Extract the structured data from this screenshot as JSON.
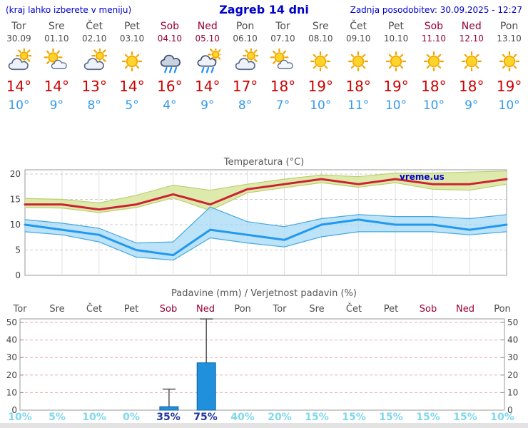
{
  "header": {
    "note": "(kraj lahko izberete v meniju)",
    "title": "Zagreb 14 dni",
    "updated": "Zadnja posodobitev: 30.09.2025 - 12:27"
  },
  "forecast": {
    "days": [
      {
        "name": "Tor",
        "date": "30.09",
        "weekend": false,
        "icon": "cloud-sun",
        "tmax": "14°",
        "tmin": "10°"
      },
      {
        "name": "Sre",
        "date": "01.10",
        "weekend": false,
        "icon": "sun-cloud",
        "tmax": "14°",
        "tmin": "9°"
      },
      {
        "name": "Čet",
        "date": "02.10",
        "weekend": false,
        "icon": "cloud-sun",
        "tmax": "13°",
        "tmin": "8°"
      },
      {
        "name": "Pet",
        "date": "03.10",
        "weekend": false,
        "icon": "sun",
        "tmax": "14°",
        "tmin": "5°"
      },
      {
        "name": "Sob",
        "date": "04.10",
        "weekend": true,
        "icon": "rain",
        "tmax": "16°",
        "tmin": "4°"
      },
      {
        "name": "Ned",
        "date": "05.10",
        "weekend": true,
        "icon": "sun-rain",
        "tmax": "14°",
        "tmin": "9°"
      },
      {
        "name": "Pon",
        "date": "06.10",
        "weekend": false,
        "icon": "cloud-sun",
        "tmax": "17°",
        "tmin": "8°"
      },
      {
        "name": "Tor",
        "date": "07.10",
        "weekend": false,
        "icon": "sun-cloud",
        "tmax": "18°",
        "tmin": "7°"
      },
      {
        "name": "Sre",
        "date": "08.10",
        "weekend": false,
        "icon": "sun",
        "tmax": "19°",
        "tmin": "10°"
      },
      {
        "name": "Čet",
        "date": "09.10",
        "weekend": false,
        "icon": "sun",
        "tmax": "18°",
        "tmin": "11°"
      },
      {
        "name": "Pet",
        "date": "10.10",
        "weekend": false,
        "icon": "sun",
        "tmax": "19°",
        "tmin": "10°"
      },
      {
        "name": "Sob",
        "date": "11.10",
        "weekend": true,
        "icon": "sun",
        "tmax": "18°",
        "tmin": "10°"
      },
      {
        "name": "Ned",
        "date": "12.10",
        "weekend": true,
        "icon": "sun",
        "tmax": "18°",
        "tmin": "9°"
      },
      {
        "name": "Pon",
        "date": "13.10",
        "weekend": false,
        "icon": "sun",
        "tmax": "19°",
        "tmin": "10°"
      }
    ]
  },
  "chart_data": [
    {
      "type": "line",
      "title": "Temperatura (°C)",
      "watermark": "vreme.us",
      "categories": [
        "Tor",
        "Sre",
        "Čet",
        "Pet",
        "Sob",
        "Ned",
        "Pon",
        "Tor",
        "Sre",
        "Čet",
        "Pet",
        "Sob",
        "Ned",
        "Pon"
      ],
      "ylim": [
        0,
        21
      ],
      "yticks": [
        0,
        5,
        10,
        15,
        20
      ],
      "grid": true,
      "legend": "none",
      "series": [
        {
          "name": "tmax",
          "color": "#cc2233",
          "values": [
            14,
            14,
            13,
            14,
            16,
            14,
            17,
            18,
            19,
            18,
            19,
            18,
            18,
            19
          ]
        },
        {
          "name": "tmin",
          "color": "#2299ee",
          "values": [
            10,
            9,
            8,
            5,
            4,
            9,
            8,
            7,
            10,
            11,
            10,
            10,
            9,
            10
          ]
        },
        {
          "name": "tmax_band_high",
          "values": [
            15.2,
            15,
            14.3,
            15.8,
            17.8,
            16.8,
            18,
            19,
            19.8,
            19.5,
            20.2,
            20.2,
            20.4,
            20.6
          ]
        },
        {
          "name": "tmax_band_low",
          "values": [
            13.4,
            13.3,
            12.4,
            13.4,
            15.3,
            12.8,
            16.3,
            17.3,
            18.3,
            17.4,
            18.3,
            17,
            16.8,
            18
          ]
        },
        {
          "name": "tmin_band_high",
          "values": [
            11,
            10.3,
            9.3,
            6.4,
            6.6,
            13.5,
            10.6,
            9.6,
            11.2,
            12,
            11.6,
            11.6,
            11.2,
            12
          ]
        },
        {
          "name": "tmin_band_low",
          "values": [
            8.6,
            8,
            6.6,
            3.6,
            3,
            7.4,
            6.4,
            5.6,
            7.6,
            8.6,
            8.6,
            8.6,
            8,
            8.6
          ]
        }
      ]
    },
    {
      "type": "bar",
      "title": "Padavine (mm) / Verjetnost padavin (%)",
      "categories": [
        "Tor",
        "Sre",
        "Čet",
        "Pet",
        "Sob",
        "Ned",
        "Pon",
        "Tor",
        "Sre",
        "Čet",
        "Pet",
        "Sob",
        "Ned",
        "Pon"
      ],
      "values": [
        0,
        0,
        0,
        0,
        2,
        27,
        0,
        0,
        0,
        0,
        0,
        0,
        0,
        0
      ],
      "whisker_high": [
        0,
        0,
        0,
        0,
        12,
        52,
        0,
        0,
        0,
        0,
        0,
        0,
        0,
        0
      ],
      "probabilities": [
        "10%",
        "5%",
        "10%",
        "0%",
        "35%",
        "75%",
        "40%",
        "20%",
        "15%",
        "15%",
        "15%",
        "15%",
        "15%",
        "10%"
      ],
      "prob_strong": [
        false,
        false,
        false,
        false,
        true,
        true,
        false,
        false,
        false,
        false,
        false,
        false,
        false,
        false
      ],
      "ylim": [
        0,
        52
      ],
      "yticks": [
        0,
        10,
        20,
        30,
        40,
        50
      ]
    }
  ],
  "colors": {
    "accent_blue": "#0000cc",
    "tmax_red": "#cc0000",
    "tmin_blue": "#3399ee",
    "weekend_red": "#990033",
    "weekday_gray": "#4d4d4d",
    "band_yellow": "#dce9a6",
    "band_yellow_edge": "#bccf70",
    "band_blue": "#a5d9f5",
    "band_blue_edge": "#45a8e0",
    "bar_blue": "#2090dd",
    "bar_border": "#1060a0",
    "whisker_gray": "#555555",
    "grid_gray": "#cccccc",
    "vgrid_gray": "#e0e0e0",
    "plot_border": "#999999",
    "precip_grid_pink": "#e8a8a8",
    "prob_light": "#7fd8ea",
    "prob_strong": "#22359e",
    "axis_text": "#444444"
  }
}
